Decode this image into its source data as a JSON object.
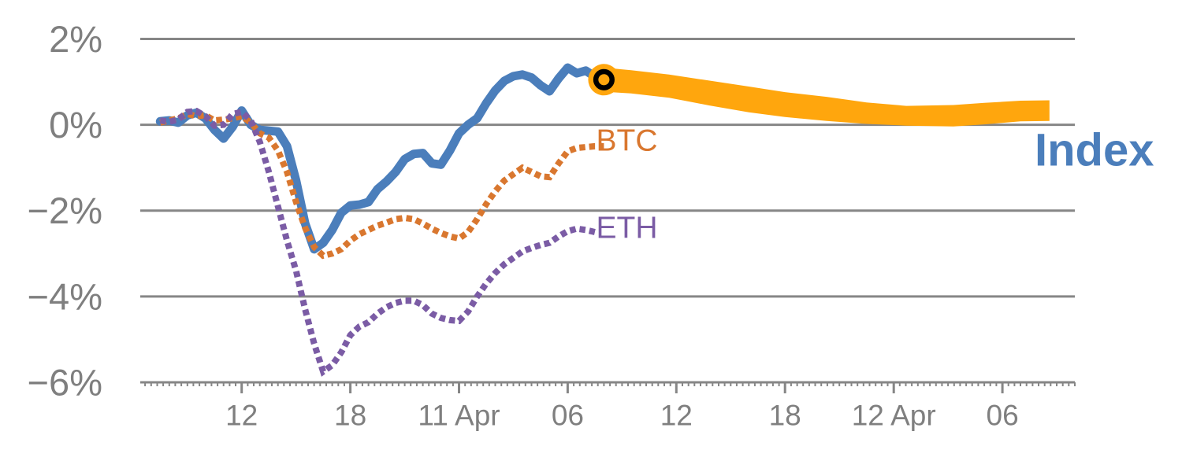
{
  "page": {
    "background": "#ffffff",
    "description": "Crypto performance chart: Index history with orange forecast band vs BTC and ETH dotted lines"
  },
  "chart_data": {
    "type": "line",
    "title": "",
    "xlabel": "",
    "ylabel": "",
    "grid": true,
    "legend_position": "inline-annotations",
    "x_axis": {
      "unit": "hours since 10 Apr 00:00",
      "domain": [
        6.4,
        58.0
      ],
      "major_ticks": [
        {
          "h": 12,
          "label": "12"
        },
        {
          "h": 18,
          "label": "18"
        },
        {
          "h": 24,
          "label": "11 Apr"
        },
        {
          "h": 30,
          "label": "06"
        },
        {
          "h": 36,
          "label": "12"
        },
        {
          "h": 42,
          "label": "18"
        },
        {
          "h": 48,
          "label": "12 Apr"
        },
        {
          "h": 54,
          "label": "06"
        }
      ],
      "minor_tick_interval_h": 0.33333
    },
    "y_axis": {
      "domain": [
        -6.0,
        2.54
      ],
      "ticks": [
        {
          "v": 2,
          "label": "2%"
        },
        {
          "v": 0,
          "label": "0%"
        },
        {
          "v": -2,
          "label": "−2%"
        },
        {
          "v": -4,
          "label": "−4%"
        },
        {
          "v": -6,
          "label": "−6%"
        }
      ]
    },
    "grid_values": [
      2,
      0,
      -2,
      -4
    ],
    "series": [
      {
        "name": "Index",
        "color": "#4B7EBB",
        "style": "solid",
        "stroke_width": 11,
        "points": [
          [
            7.5,
            0.08
          ],
          [
            8,
            0.1
          ],
          [
            8.5,
            0.05
          ],
          [
            9,
            0.22
          ],
          [
            9.5,
            0.28
          ],
          [
            10,
            0.15
          ],
          [
            10.5,
            -0.12
          ],
          [
            11,
            -0.32
          ],
          [
            11.5,
            -0.05
          ],
          [
            12,
            0.33
          ],
          [
            12.5,
            0.0
          ],
          [
            13,
            -0.12
          ],
          [
            13.5,
            -0.14
          ],
          [
            14,
            -0.16
          ],
          [
            14.5,
            -0.5
          ],
          [
            15,
            -1.3
          ],
          [
            15.5,
            -2.3
          ],
          [
            16,
            -2.9
          ],
          [
            16.5,
            -2.75
          ],
          [
            17,
            -2.45
          ],
          [
            17.5,
            -2.05
          ],
          [
            18,
            -1.88
          ],
          [
            18.5,
            -1.86
          ],
          [
            19,
            -1.8
          ],
          [
            19.5,
            -1.5
          ],
          [
            20,
            -1.32
          ],
          [
            20.5,
            -1.1
          ],
          [
            21,
            -0.8
          ],
          [
            21.5,
            -0.68
          ],
          [
            22,
            -0.66
          ],
          [
            22.5,
            -0.9
          ],
          [
            23,
            -0.93
          ],
          [
            23.5,
            -0.6
          ],
          [
            24,
            -0.2
          ],
          [
            24.5,
            0.0
          ],
          [
            25,
            0.15
          ],
          [
            25.5,
            0.5
          ],
          [
            26,
            0.8
          ],
          [
            26.5,
            1.02
          ],
          [
            27,
            1.13
          ],
          [
            27.5,
            1.17
          ],
          [
            28,
            1.1
          ],
          [
            28.5,
            0.92
          ],
          [
            29,
            0.78
          ],
          [
            29.5,
            1.08
          ],
          [
            30,
            1.33
          ],
          [
            30.5,
            1.2
          ],
          [
            31,
            1.26
          ],
          [
            31.5,
            1.12
          ],
          [
            32,
            1.05
          ]
        ]
      },
      {
        "name": "BTC",
        "color": "#D9772F",
        "style": "dotted",
        "stroke_width": 8,
        "points": [
          [
            7.5,
            0.05
          ],
          [
            8,
            0.1
          ],
          [
            8.5,
            0.15
          ],
          [
            9,
            0.25
          ],
          [
            9.5,
            0.2
          ],
          [
            10,
            0.22
          ],
          [
            10.5,
            0.1
          ],
          [
            11,
            0.12
          ],
          [
            11.5,
            0.15
          ],
          [
            12,
            0.2
          ],
          [
            12.5,
            0.05
          ],
          [
            13,
            -0.2
          ],
          [
            13.5,
            -0.3
          ],
          [
            14,
            -0.6
          ],
          [
            14.5,
            -1.1
          ],
          [
            15,
            -1.8
          ],
          [
            15.5,
            -2.4
          ],
          [
            16,
            -2.85
          ],
          [
            16.5,
            -3.05
          ],
          [
            17,
            -3.0
          ],
          [
            17.5,
            -2.9
          ],
          [
            18,
            -2.7
          ],
          [
            18.5,
            -2.55
          ],
          [
            19,
            -2.45
          ],
          [
            19.5,
            -2.35
          ],
          [
            20,
            -2.28
          ],
          [
            20.5,
            -2.2
          ],
          [
            21,
            -2.17
          ],
          [
            21.5,
            -2.2
          ],
          [
            22,
            -2.3
          ],
          [
            22.5,
            -2.42
          ],
          [
            23,
            -2.52
          ],
          [
            23.5,
            -2.6
          ],
          [
            24,
            -2.65
          ],
          [
            24.5,
            -2.5
          ],
          [
            25,
            -2.2
          ],
          [
            25.5,
            -1.85
          ],
          [
            26,
            -1.55
          ],
          [
            26.5,
            -1.3
          ],
          [
            27,
            -1.15
          ],
          [
            27.5,
            -1.0
          ],
          [
            28,
            -1.1
          ],
          [
            28.5,
            -1.2
          ],
          [
            29,
            -1.22
          ],
          [
            29.5,
            -0.9
          ],
          [
            30,
            -0.62
          ],
          [
            30.5,
            -0.54
          ],
          [
            31,
            -0.52
          ],
          [
            31.5,
            -0.5
          ],
          [
            32,
            -0.5
          ]
        ]
      },
      {
        "name": "ETH",
        "color": "#7B5CA5",
        "style": "dotted",
        "stroke_width": 8,
        "points": [
          [
            7.5,
            0.1
          ],
          [
            8,
            0.07
          ],
          [
            8.5,
            0.12
          ],
          [
            9,
            0.3
          ],
          [
            9.5,
            0.32
          ],
          [
            10,
            0.2
          ],
          [
            10.5,
            -0.02
          ],
          [
            11,
            0.0
          ],
          [
            11.5,
            0.25
          ],
          [
            12,
            0.3
          ],
          [
            12.5,
            0.1
          ],
          [
            13,
            -0.4
          ],
          [
            13.5,
            -1.1
          ],
          [
            14,
            -1.9
          ],
          [
            14.5,
            -2.7
          ],
          [
            15,
            -3.4
          ],
          [
            15.5,
            -4.3
          ],
          [
            16,
            -5.1
          ],
          [
            16.5,
            -5.75
          ],
          [
            17,
            -5.6
          ],
          [
            17.5,
            -5.3
          ],
          [
            18,
            -4.9
          ],
          [
            18.5,
            -4.7
          ],
          [
            19,
            -4.6
          ],
          [
            19.5,
            -4.4
          ],
          [
            20,
            -4.25
          ],
          [
            20.5,
            -4.15
          ],
          [
            21,
            -4.1
          ],
          [
            21.5,
            -4.1
          ],
          [
            22,
            -4.2
          ],
          [
            22.5,
            -4.4
          ],
          [
            23,
            -4.5
          ],
          [
            23.5,
            -4.55
          ],
          [
            24,
            -4.57
          ],
          [
            24.5,
            -4.35
          ],
          [
            25,
            -4.0
          ],
          [
            25.5,
            -3.7
          ],
          [
            26,
            -3.45
          ],
          [
            26.5,
            -3.25
          ],
          [
            27,
            -3.1
          ],
          [
            27.5,
            -2.95
          ],
          [
            28,
            -2.87
          ],
          [
            28.5,
            -2.8
          ],
          [
            29,
            -2.75
          ],
          [
            29.5,
            -2.6
          ],
          [
            30,
            -2.48
          ],
          [
            30.5,
            -2.42
          ],
          [
            31,
            -2.45
          ],
          [
            31.5,
            -2.5
          ]
        ]
      }
    ],
    "projection_band": {
      "name": "Index forecast",
      "color": "#FFA60D",
      "points_h_center_halfwidth": [
        [
          32.0,
          1.05,
          0.28
        ],
        [
          33.5,
          1.0,
          0.27
        ],
        [
          35.6,
          0.9,
          0.27
        ],
        [
          37.8,
          0.74,
          0.29
        ],
        [
          40.0,
          0.59,
          0.3
        ],
        [
          42.0,
          0.47,
          0.29
        ],
        [
          44.3,
          0.37,
          0.28
        ],
        [
          46.5,
          0.27,
          0.25
        ],
        [
          48.7,
          0.21,
          0.23
        ],
        [
          51.3,
          0.21,
          0.25
        ],
        [
          53.0,
          0.26,
          0.25
        ],
        [
          55.0,
          0.32,
          0.24
        ],
        [
          56.6,
          0.33,
          0.24
        ]
      ]
    },
    "current_marker": {
      "h": 32.0,
      "v": 1.05,
      "fill_color": "#FFA60D",
      "ring_color": "#000000"
    },
    "annotations": [
      {
        "id": "btc",
        "text": "BTC",
        "h": 31.57,
        "v": -0.37,
        "color": "#D9772F",
        "size": 39,
        "weight": 400
      },
      {
        "id": "eth",
        "text": "ETH",
        "h": 31.57,
        "v": -2.41,
        "color": "#7B5CA5",
        "size": 39,
        "weight": 400
      },
      {
        "id": "index",
        "text": "Index",
        "h": 55.78,
        "v": -0.59,
        "color": "#4B7EBB",
        "size": 58,
        "weight": 700
      }
    ],
    "style": {
      "grid_color": "#868686",
      "axis_color": "#868686",
      "tick_label_color": "#7F7F7F",
      "x_tick_font_size": 37,
      "y_tick_font_size": 47
    }
  }
}
